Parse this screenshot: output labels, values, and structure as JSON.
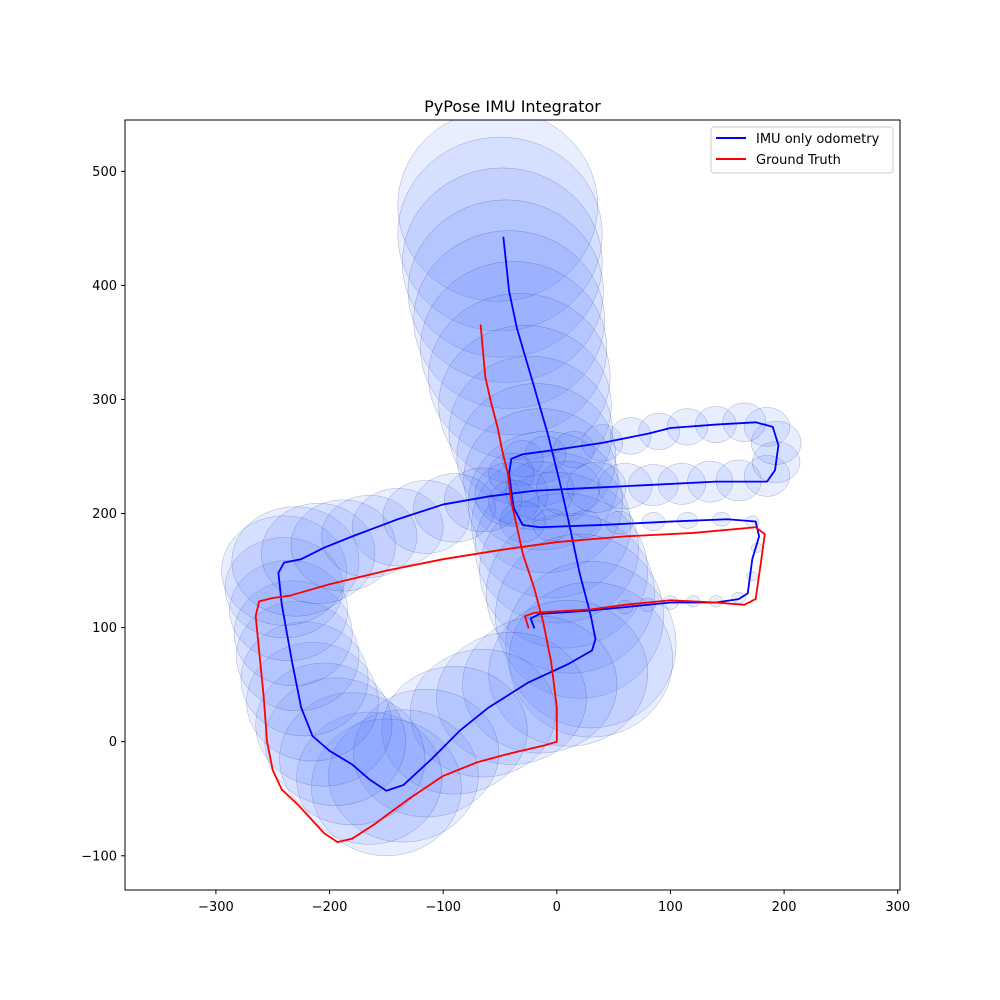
{
  "chart_data": {
    "type": "line",
    "title": "PyPose IMU Integrator",
    "xlabel": "",
    "ylabel": "",
    "xlim": [
      -380,
      302
    ],
    "ylim": [
      -130,
      545
    ],
    "x_ticks": [
      -300,
      -200,
      -100,
      0,
      100,
      200,
      300
    ],
    "x_tick_labels": [
      "−300",
      "−200",
      "−100",
      "0",
      "100",
      "200",
      "300"
    ],
    "y_ticks": [
      -100,
      0,
      100,
      200,
      300,
      400,
      500
    ],
    "y_tick_labels": [
      "−100",
      "0",
      "100",
      "200",
      "300",
      "400",
      "500"
    ],
    "grid": false,
    "legend_position": "top-right",
    "series": [
      {
        "name": "IMU only odometry",
        "color": "#0000ff",
        "points": [
          [
            -47,
            442
          ],
          [
            -42,
            395
          ],
          [
            -35,
            362
          ],
          [
            -22,
            318
          ],
          [
            -8,
            270
          ],
          [
            2,
            230
          ],
          [
            10,
            195
          ],
          [
            20,
            148
          ],
          [
            30,
            110
          ],
          [
            34,
            90
          ],
          [
            31,
            80
          ],
          [
            10,
            68
          ],
          [
            -25,
            52
          ],
          [
            -60,
            30
          ],
          [
            -85,
            10
          ],
          [
            -110,
            -15
          ],
          [
            -135,
            -38
          ],
          [
            -150,
            -43
          ],
          [
            -165,
            -33
          ],
          [
            -180,
            -20
          ],
          [
            -200,
            -8
          ],
          [
            -215,
            5
          ],
          [
            -225,
            30
          ],
          [
            -233,
            70
          ],
          [
            -242,
            120
          ],
          [
            -245,
            148
          ],
          [
            -240,
            157
          ],
          [
            -225,
            160
          ],
          [
            -205,
            170
          ],
          [
            -180,
            180
          ],
          [
            -140,
            195
          ],
          [
            -100,
            208
          ],
          [
            -60,
            215
          ],
          [
            -20,
            220
          ],
          [
            20,
            222
          ],
          [
            80,
            225
          ],
          [
            140,
            228
          ],
          [
            185,
            228
          ],
          [
            192,
            238
          ],
          [
            195,
            260
          ],
          [
            190,
            276
          ],
          [
            175,
            280
          ],
          [
            140,
            278
          ],
          [
            100,
            275
          ],
          [
            80,
            270
          ],
          [
            40,
            262
          ],
          [
            0,
            256
          ],
          [
            -30,
            252
          ],
          [
            -40,
            248
          ],
          [
            -42,
            235
          ],
          [
            -38,
            205
          ],
          [
            -30,
            190
          ],
          [
            -15,
            188
          ],
          [
            40,
            190
          ],
          [
            100,
            193
          ],
          [
            150,
            195
          ],
          [
            175,
            193
          ],
          [
            178,
            180
          ],
          [
            172,
            160
          ],
          [
            168,
            130
          ],
          [
            160,
            125
          ],
          [
            140,
            122
          ],
          [
            100,
            122
          ],
          [
            60,
            118
          ],
          [
            30,
            115
          ],
          [
            -15,
            112
          ],
          [
            -23,
            108
          ],
          [
            -20,
            100
          ]
        ]
      },
      {
        "name": "Ground Truth",
        "color": "#ff0000",
        "points": [
          [
            -67,
            365
          ],
          [
            -63,
            320
          ],
          [
            -58,
            298
          ],
          [
            -52,
            275
          ],
          [
            -48,
            255
          ],
          [
            -43,
            235
          ],
          [
            -40,
            210
          ],
          [
            -35,
            188
          ],
          [
            -30,
            165
          ],
          [
            -20,
            135
          ],
          [
            -12,
            105
          ],
          [
            -5,
            70
          ],
          [
            0,
            30
          ],
          [
            0,
            0
          ],
          [
            -10,
            -3
          ],
          [
            -40,
            -10
          ],
          [
            -70,
            -18
          ],
          [
            -100,
            -30
          ],
          [
            -130,
            -50
          ],
          [
            -160,
            -72
          ],
          [
            -180,
            -85
          ],
          [
            -193,
            -88
          ],
          [
            -205,
            -80
          ],
          [
            -228,
            -55
          ],
          [
            -242,
            -42
          ],
          [
            -250,
            -25
          ],
          [
            -255,
            0
          ],
          [
            -258,
            40
          ],
          [
            -262,
            80
          ],
          [
            -265,
            110
          ],
          [
            -262,
            123
          ],
          [
            -250,
            126
          ],
          [
            -235,
            128
          ],
          [
            -200,
            138
          ],
          [
            -150,
            150
          ],
          [
            -100,
            160
          ],
          [
            -50,
            168
          ],
          [
            0,
            175
          ],
          [
            60,
            180
          ],
          [
            120,
            183
          ],
          [
            175,
            188
          ],
          [
            183,
            182
          ],
          [
            180,
            160
          ],
          [
            175,
            125
          ],
          [
            165,
            120
          ],
          [
            140,
            122
          ],
          [
            100,
            124
          ],
          [
            60,
            120
          ],
          [
            30,
            116
          ],
          [
            -20,
            113
          ],
          [
            -28,
            110
          ],
          [
            -25,
            100
          ]
        ]
      }
    ],
    "uncertainty_ellipses": {
      "color": "#4a72ff",
      "ellipses": [
        [
          -52,
          470,
          88,
          84
        ],
        [
          -50,
          445,
          90,
          85
        ],
        [
          -48,
          420,
          88,
          83
        ],
        [
          -45,
          395,
          86,
          80
        ],
        [
          -42,
          370,
          84,
          78
        ],
        [
          -38,
          345,
          82,
          76
        ],
        [
          -33,
          320,
          80,
          73
        ],
        [
          -28,
          295,
          76,
          70
        ],
        [
          -23,
          272,
          72,
          66
        ],
        [
          -18,
          250,
          70,
          64
        ],
        [
          -14,
          230,
          68,
          62
        ],
        [
          -10,
          210,
          68,
          62
        ],
        [
          -5,
          190,
          70,
          64
        ],
        [
          0,
          170,
          72,
          66
        ],
        [
          6,
          150,
          74,
          68
        ],
        [
          12,
          130,
          74,
          70
        ],
        [
          20,
          110,
          74,
          72
        ],
        [
          30,
          85,
          75,
          73
        ],
        [
          30,
          72,
          72,
          68
        ],
        [
          10,
          60,
          70,
          64
        ],
        [
          -15,
          50,
          68,
          60
        ],
        [
          -40,
          38,
          66,
          58
        ],
        [
          -65,
          25,
          64,
          56
        ],
        [
          -90,
          10,
          64,
          56
        ],
        [
          -115,
          -10,
          64,
          56
        ],
        [
          -135,
          -30,
          66,
          58
        ],
        [
          -150,
          -40,
          66,
          60
        ],
        [
          -165,
          -32,
          64,
          58
        ],
        [
          -180,
          -15,
          64,
          58
        ],
        [
          -195,
          0,
          62,
          56
        ],
        [
          -205,
          15,
          60,
          54
        ],
        [
          -215,
          35,
          58,
          52
        ],
        [
          -222,
          55,
          56,
          50
        ],
        [
          -228,
          75,
          54,
          48
        ],
        [
          -232,
          95,
          52,
          46
        ],
        [
          -236,
          115,
          52,
          44
        ],
        [
          -240,
          135,
          52,
          44
        ],
        [
          -240,
          150,
          55,
          48
        ],
        [
          -230,
          158,
          56,
          48
        ],
        [
          -210,
          165,
          50,
          44
        ],
        [
          -188,
          172,
          46,
          40
        ],
        [
          -165,
          180,
          42,
          36
        ],
        [
          -140,
          188,
          40,
          34
        ],
        [
          -115,
          197,
          38,
          32
        ],
        [
          -90,
          205,
          36,
          30
        ],
        [
          -65,
          212,
          34,
          28
        ],
        [
          -40,
          217,
          32,
          28
        ],
        [
          -15,
          220,
          30,
          26
        ],
        [
          10,
          222,
          28,
          24
        ],
        [
          35,
          223,
          26,
          22
        ],
        [
          60,
          224,
          24,
          20
        ],
        [
          85,
          225,
          22,
          18
        ],
        [
          110,
          226,
          21,
          18
        ],
        [
          135,
          228,
          20,
          18
        ],
        [
          160,
          229,
          20,
          18
        ],
        [
          185,
          233,
          20,
          18
        ],
        [
          193,
          245,
          21,
          18
        ],
        [
          193,
          262,
          22,
          19
        ],
        [
          185,
          276,
          20,
          17
        ],
        [
          165,
          280,
          19,
          17
        ],
        [
          140,
          278,
          18,
          16
        ],
        [
          115,
          276,
          18,
          16
        ],
        [
          90,
          272,
          18,
          16
        ],
        [
          65,
          268,
          18,
          16
        ],
        [
          40,
          262,
          18,
          16
        ],
        [
          15,
          256,
          18,
          16
        ],
        [
          -10,
          252,
          18,
          16
        ],
        [
          -30,
          248,
          18,
          16
        ],
        [
          -40,
          235,
          20,
          18
        ],
        [
          -38,
          210,
          22,
          19
        ],
        [
          -30,
          193,
          20,
          18
        ],
        [
          -5,
          190,
          16,
          14
        ],
        [
          25,
          191,
          14,
          12
        ],
        [
          55,
          192,
          12,
          10
        ],
        [
          85,
          193,
          10,
          8
        ],
        [
          115,
          194,
          9,
          7
        ],
        [
          145,
          195,
          8,
          6
        ],
        [
          172,
          193,
          6,
          5
        ],
        [
          176,
          170,
          5,
          4
        ],
        [
          172,
          145,
          5,
          4
        ],
        [
          160,
          126,
          6,
          5
        ],
        [
          140,
          123,
          6,
          5
        ],
        [
          120,
          123,
          6,
          5
        ],
        [
          100,
          122,
          7,
          6
        ],
        [
          80,
          120,
          7,
          6
        ],
        [
          60,
          118,
          7,
          6
        ]
      ]
    }
  }
}
